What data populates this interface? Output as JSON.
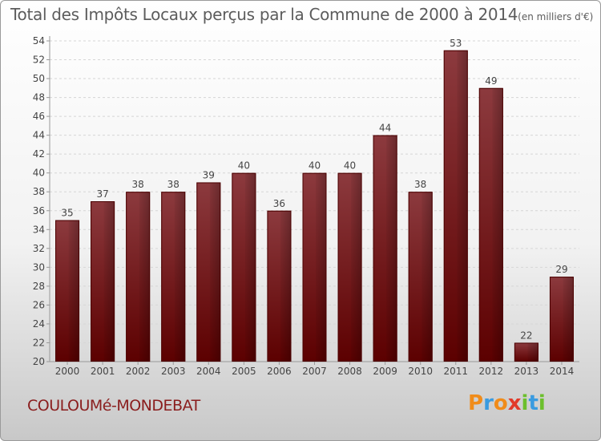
{
  "header": {
    "title": "Total des Impôts Locaux perçus par la Commune de 2000 à 2014",
    "unit": "(en milliers d'€)"
  },
  "footer": {
    "commune": "COULOUMé-MONDEBAT",
    "logo_letters": [
      "P",
      "r",
      "o",
      "x",
      "i",
      "t",
      "i"
    ],
    "logo_colors": [
      "#f08c1a",
      "#3a9be0",
      "#f08c1a",
      "#e23a2a",
      "#6cbf2c",
      "#3a9be0",
      "#6cbf2c"
    ]
  },
  "colors": {
    "bar_top": "#8c3a3e",
    "bar_bottom": "#5c0000",
    "title_text": "#5c5c5c",
    "commune_text": "#8a1d1d"
  },
  "chart_data": {
    "type": "bar",
    "categories": [
      "2000",
      "2001",
      "2002",
      "2003",
      "2004",
      "2005",
      "2006",
      "2007",
      "2008",
      "2009",
      "2010",
      "2011",
      "2012",
      "2013",
      "2014"
    ],
    "values": [
      35,
      37,
      38,
      38,
      39,
      40,
      36,
      40,
      40,
      44,
      38,
      53,
      49,
      22,
      29
    ],
    "title": "Total des Impôts Locaux perçus par la Commune de 2000 à 2014",
    "ylim": [
      20,
      54
    ],
    "yticks": [
      20,
      22,
      24,
      26,
      28,
      30,
      32,
      34,
      36,
      38,
      40,
      42,
      44,
      46,
      48,
      50,
      52,
      54
    ],
    "grid": true,
    "legend": "none"
  }
}
